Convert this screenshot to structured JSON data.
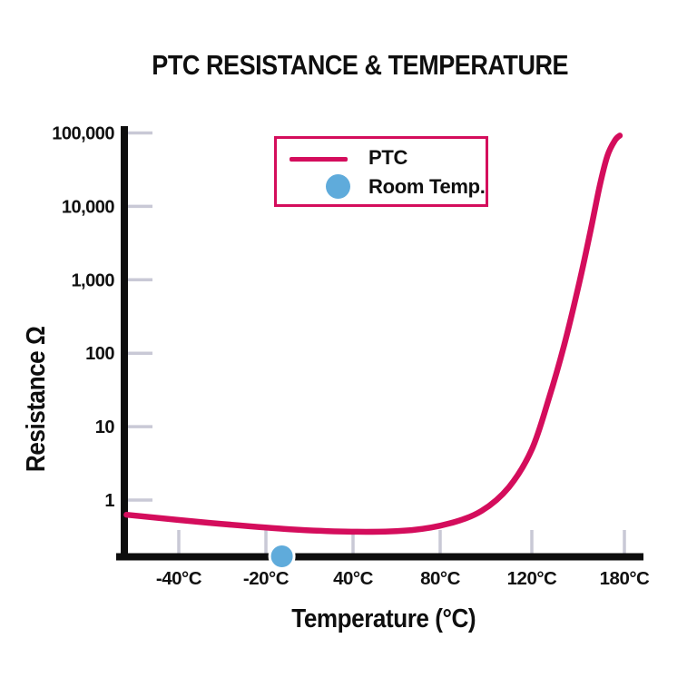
{
  "title": "PTC RESISTANCE & TEMPERATURE",
  "chart_data": {
    "type": "line",
    "title": "PTC RESISTANCE & TEMPERATURE",
    "xlabel": "Temperature (°C)",
    "ylabel": "Resistance Ω",
    "y_scale": "log",
    "ylim": [
      0.3,
      100000
    ],
    "grid": false,
    "legend_position": "top-center",
    "x_ticks": [
      {
        "label": "-40°C",
        "value": -40
      },
      {
        "label": "-20°C",
        "value": -20
      },
      {
        "label": "40°C",
        "value": 40
      },
      {
        "label": "80°C",
        "value": 80
      },
      {
        "label": "120°C",
        "value": 120
      },
      {
        "label": "180°C",
        "value": 180
      }
    ],
    "y_ticks": [
      {
        "label": "100,000",
        "value": 100000
      },
      {
        "label": "10,000",
        "value": 10000
      },
      {
        "label": "1,000",
        "value": 1000
      },
      {
        "label": "100",
        "value": 100
      },
      {
        "label": "10",
        "value": 10
      },
      {
        "label": "1",
        "value": 1
      }
    ],
    "series": [
      {
        "name": "PTC",
        "type": "line",
        "color": "#d40d5c",
        "points_temp_ohm": [
          [
            -52,
            0.63
          ],
          [
            -33,
            0.49
          ],
          [
            -3,
            0.4
          ],
          [
            42,
            0.37
          ],
          [
            67,
            0.39
          ],
          [
            84,
            0.48
          ],
          [
            98,
            0.71
          ],
          [
            110,
            1.5
          ],
          [
            120,
            4.9
          ],
          [
            131,
            24
          ],
          [
            141,
            130
          ],
          [
            151,
            960
          ],
          [
            158,
            4600
          ],
          [
            164,
            19000
          ],
          [
            169,
            49000
          ],
          [
            174,
            80000
          ],
          [
            177,
            92000
          ]
        ]
      },
      {
        "name": "Room Temp.",
        "type": "scatter",
        "color": "#5fabdb",
        "x": [
          -9
        ],
        "plotted_on_x_axis": true
      }
    ]
  },
  "colors": {
    "curve": "#d40d5c",
    "room_temp_dot": "#5fabdb",
    "tick": "#c9c9d6",
    "axis": "#0d0d0d",
    "text": "#111111",
    "legend_border": "#d40d5c",
    "background": "#ffffff"
  }
}
